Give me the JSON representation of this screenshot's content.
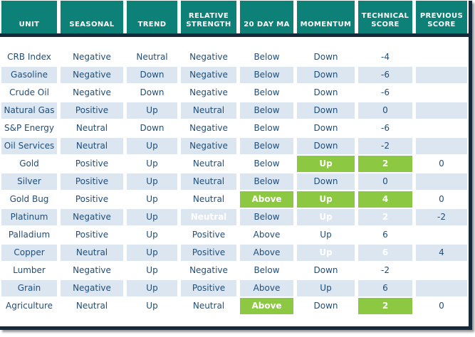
{
  "colors": {
    "header_teal": "#0D8077",
    "divider_navy": "#15293C",
    "row_alt_blue": "#DCE6F1",
    "highlight_green": "#8CC841",
    "text_blue": "#1F4E79",
    "header_text": "#FFFFFF"
  },
  "chart_data": {
    "type": "table",
    "columns": [
      "UNIT",
      "SEASONAL",
      "TREND",
      "RELATIVE STRENGTH",
      "20 DAY MA",
      "MOMENTUM",
      "TECHNICAL SCORE",
      "PREVIOUS SCORE"
    ],
    "rows": [
      {
        "unit": "CRB Index",
        "seasonal": "Negative",
        "trend": "Neutral",
        "relative_strength": "Negative",
        "ma20": "Below",
        "momentum": "Down",
        "technical_score": "-4",
        "previous_score": "",
        "highlights": []
      },
      {
        "unit": "Gasoline",
        "seasonal": "Negative",
        "trend": "Down",
        "relative_strength": "Negative",
        "ma20": "Below",
        "momentum": "Down",
        "technical_score": "-6",
        "previous_score": "",
        "highlights": []
      },
      {
        "unit": "Crude Oil",
        "seasonal": "Negative",
        "trend": "Down",
        "relative_strength": "Negative",
        "ma20": "Below",
        "momentum": "Down",
        "technical_score": "-6",
        "previous_score": "",
        "highlights": []
      },
      {
        "unit": "Natural Gas",
        "seasonal": "Positive",
        "trend": "Up",
        "relative_strength": "Neutral",
        "ma20": "Below",
        "momentum": "Down",
        "technical_score": "0",
        "previous_score": "",
        "highlights": []
      },
      {
        "unit": "S&P Energy",
        "seasonal": "Neutral",
        "trend": "Down",
        "relative_strength": "Negative",
        "ma20": "Below",
        "momentum": "Down",
        "technical_score": "-6",
        "previous_score": "",
        "highlights": []
      },
      {
        "unit": "Oil Services",
        "seasonal": "Neutral",
        "trend": "Up",
        "relative_strength": "Negative",
        "ma20": "Below",
        "momentum": "Down",
        "technical_score": "-2",
        "previous_score": "",
        "highlights": []
      },
      {
        "unit": "Gold",
        "seasonal": "Positive",
        "trend": "Up",
        "relative_strength": "Neutral",
        "ma20": "Below",
        "momentum": "Up",
        "technical_score": "2",
        "previous_score": "0",
        "highlights": [
          "momentum",
          "technical_score"
        ]
      },
      {
        "unit": "Silver",
        "seasonal": "Positive",
        "trend": "Up",
        "relative_strength": "Neutral",
        "ma20": "Below",
        "momentum": "Down",
        "technical_score": "0",
        "previous_score": "",
        "highlights": []
      },
      {
        "unit": "Gold Bug",
        "seasonal": "Positive",
        "trend": "Up",
        "relative_strength": "Neutral",
        "ma20": "Above",
        "momentum": "Up",
        "technical_score": "4",
        "previous_score": "0",
        "highlights": [
          "ma20",
          "momentum",
          "technical_score"
        ]
      },
      {
        "unit": "Platinum",
        "seasonal": "Negative",
        "trend": "Up",
        "relative_strength": "Neutral",
        "ma20": "Below",
        "momentum": "Up",
        "technical_score": "2",
        "previous_score": "-2",
        "highlights": [
          "relative_strength",
          "momentum",
          "technical_score"
        ]
      },
      {
        "unit": "Palladium",
        "seasonal": "Positive",
        "trend": "Up",
        "relative_strength": "Positive",
        "ma20": "Above",
        "momentum": "Up",
        "technical_score": "6",
        "previous_score": "",
        "highlights": []
      },
      {
        "unit": "Copper",
        "seasonal": "Neutral",
        "trend": "Up",
        "relative_strength": "Positive",
        "ma20": "Above",
        "momentum": "Up",
        "technical_score": "6",
        "previous_score": "4",
        "highlights": [
          "momentum",
          "technical_score"
        ]
      },
      {
        "unit": "Lumber",
        "seasonal": "Negative",
        "trend": "Up",
        "relative_strength": "Negative",
        "ma20": "Below",
        "momentum": "Down",
        "technical_score": "-2",
        "previous_score": "",
        "highlights": []
      },
      {
        "unit": "Grain",
        "seasonal": "Negative",
        "trend": "Up",
        "relative_strength": "Positive",
        "ma20": "Above",
        "momentum": "Up",
        "technical_score": "6",
        "previous_score": "",
        "highlights": []
      },
      {
        "unit": "Agriculture",
        "seasonal": "Neutral",
        "trend": "Up",
        "relative_strength": "Neutral",
        "ma20": "Above",
        "momentum": "Down",
        "technical_score": "2",
        "previous_score": "0",
        "highlights": [
          "ma20",
          "technical_score"
        ]
      }
    ]
  }
}
